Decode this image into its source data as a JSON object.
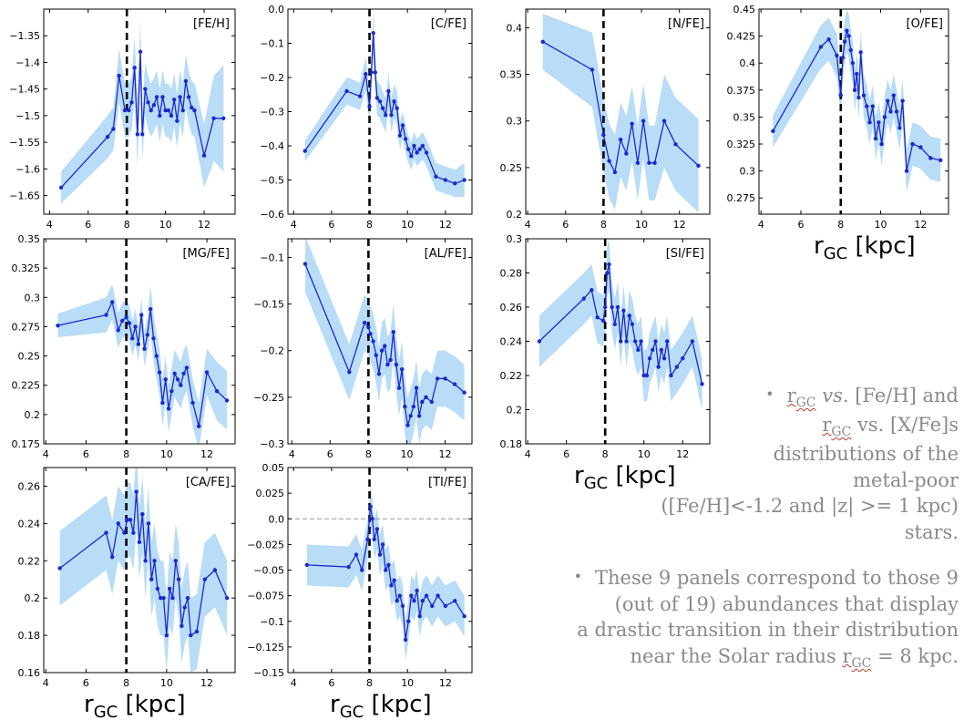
{
  "colors": {
    "band": "#b9dcf7",
    "line": "#1a29cf",
    "solar": "#000000",
    "zero": "#999999"
  },
  "x_axis_label": {
    "main": "r",
    "sub": "GC",
    "unit": " [kpc]"
  },
  "solar_radius_kpc": 8,
  "chart_data": [
    {
      "type": "line",
      "label": "[FE/H]",
      "xlim": [
        3.7,
        13.6
      ],
      "ylim": [
        -1.685,
        -1.3
      ],
      "xticks": [
        4,
        6,
        8,
        10,
        12
      ],
      "yticks": [
        -1.35,
        -1.4,
        -1.45,
        -1.5,
        -1.55,
        -1.6,
        -1.65
      ],
      "x": [
        4.6,
        7.0,
        7.3,
        7.6,
        7.9,
        8.1,
        8.25,
        8.4,
        8.55,
        8.7,
        8.8,
        8.95,
        9.1,
        9.25,
        9.4,
        9.55,
        9.7,
        9.85,
        10.0,
        10.15,
        10.3,
        10.45,
        10.6,
        10.75,
        10.9,
        11.05,
        11.2,
        11.35,
        11.5,
        12.0,
        12.5,
        13.0
      ],
      "y": [
        -1.635,
        -1.54,
        -1.525,
        -1.425,
        -1.49,
        -1.49,
        -1.475,
        -1.41,
        -1.535,
        -1.38,
        -1.535,
        -1.45,
        -1.475,
        -1.49,
        -1.48,
        -1.465,
        -1.5,
        -1.465,
        -1.49,
        -1.49,
        -1.5,
        -1.47,
        -1.51,
        -1.465,
        -1.49,
        -1.435,
        -1.465,
        -1.485,
        -1.49,
        -1.575,
        -1.505,
        -1.505
      ],
      "err": [
        0.03,
        0.04,
        0.04,
        0.05,
        0.05,
        0.05,
        0.05,
        0.06,
        0.06,
        0.06,
        0.05,
        0.05,
        0.05,
        0.05,
        0.05,
        0.05,
        0.05,
        0.05,
        0.05,
        0.05,
        0.05,
        0.05,
        0.05,
        0.05,
        0.05,
        0.05,
        0.05,
        0.05,
        0.05,
        0.06,
        0.08,
        0.1
      ]
    },
    {
      "type": "line",
      "label": "[C/FE]",
      "xlim": [
        3.7,
        13.4
      ],
      "ylim": [
        -0.6,
        0.0
      ],
      "xticks": [
        4,
        6,
        8,
        10,
        12
      ],
      "yticks": [
        0.0,
        -0.1,
        -0.2,
        -0.3,
        -0.4,
        -0.5,
        -0.6
      ],
      "x": [
        4.6,
        6.8,
        7.5,
        7.8,
        8.0,
        8.1,
        8.2,
        8.3,
        8.4,
        8.55,
        8.7,
        8.85,
        9.0,
        9.15,
        9.3,
        9.45,
        9.6,
        9.75,
        9.9,
        10.05,
        10.2,
        10.35,
        10.5,
        10.65,
        10.8,
        11.0,
        11.5,
        12.0,
        12.5,
        13.0
      ],
      "y": [
        -0.415,
        -0.24,
        -0.255,
        -0.19,
        -0.285,
        -0.185,
        -0.07,
        -0.185,
        -0.26,
        -0.27,
        -0.29,
        -0.31,
        -0.24,
        -0.31,
        -0.27,
        -0.29,
        -0.37,
        -0.34,
        -0.38,
        -0.41,
        -0.43,
        -0.4,
        -0.42,
        -0.41,
        -0.4,
        -0.42,
        -0.49,
        -0.5,
        -0.51,
        -0.5
      ],
      "err": [
        0.03,
        0.04,
        0.04,
        0.05,
        0.05,
        0.06,
        0.06,
        0.06,
        0.05,
        0.05,
        0.05,
        0.05,
        0.05,
        0.05,
        0.05,
        0.05,
        0.04,
        0.04,
        0.04,
        0.04,
        0.04,
        0.04,
        0.04,
        0.04,
        0.04,
        0.04,
        0.04,
        0.04,
        0.04,
        0.05
      ]
    },
    {
      "type": "line",
      "label": "[N/FE]",
      "xlim": [
        3.9,
        13.6
      ],
      "ylim": [
        0.2,
        0.42
      ],
      "xticks": [
        4,
        6,
        8,
        10,
        12
      ],
      "yticks": [
        0.4,
        0.35,
        0.3,
        0.25,
        0.2
      ],
      "x": [
        4.8,
        7.4,
        8.0,
        8.3,
        8.6,
        8.9,
        9.2,
        9.5,
        9.8,
        10.1,
        10.4,
        10.7,
        11.2,
        11.8,
        13.0
      ],
      "y": [
        0.385,
        0.355,
        0.285,
        0.257,
        0.245,
        0.28,
        0.265,
        0.297,
        0.255,
        0.3,
        0.255,
        0.255,
        0.3,
        0.275,
        0.252
      ],
      "err": [
        0.03,
        0.04,
        0.04,
        0.04,
        0.04,
        0.04,
        0.04,
        0.04,
        0.04,
        0.04,
        0.04,
        0.04,
        0.05,
        0.05,
        0.05
      ]
    },
    {
      "type": "line",
      "label": "[O/FE]",
      "xlim": [
        3.9,
        13.4
      ],
      "ylim": [
        0.26,
        0.45
      ],
      "xticks": [
        4,
        6,
        8,
        10,
        12
      ],
      "yticks": [
        0.45,
        0.425,
        0.4,
        0.375,
        0.35,
        0.325,
        0.3,
        0.275
      ],
      "x": [
        4.6,
        7.0,
        7.4,
        7.8,
        8.0,
        8.1,
        8.2,
        8.3,
        8.4,
        8.5,
        8.6,
        8.7,
        8.8,
        8.9,
        9.0,
        9.15,
        9.3,
        9.45,
        9.6,
        9.75,
        9.9,
        10.05,
        10.2,
        10.35,
        10.5,
        10.65,
        10.8,
        10.95,
        11.1,
        11.3,
        11.6,
        12.0,
        12.5,
        13.0
      ],
      "y": [
        0.337,
        0.415,
        0.422,
        0.407,
        0.37,
        0.405,
        0.42,
        0.43,
        0.425,
        0.412,
        0.4,
        0.375,
        0.39,
        0.368,
        0.41,
        0.37,
        0.36,
        0.345,
        0.36,
        0.33,
        0.345,
        0.325,
        0.35,
        0.365,
        0.355,
        0.37,
        0.355,
        0.34,
        0.365,
        0.3,
        0.325,
        0.322,
        0.312,
        0.31
      ],
      "err": [
        0.015,
        0.02,
        0.02,
        0.02,
        0.02,
        0.02,
        0.02,
        0.02,
        0.02,
        0.02,
        0.02,
        0.02,
        0.02,
        0.02,
        0.02,
        0.02,
        0.02,
        0.02,
        0.02,
        0.02,
        0.02,
        0.02,
        0.02,
        0.02,
        0.02,
        0.02,
        0.02,
        0.02,
        0.02,
        0.02,
        0.02,
        0.02,
        0.02,
        0.02
      ]
    },
    {
      "type": "line",
      "label": "[MG/FE]",
      "xlim": [
        3.9,
        13.4
      ],
      "ylim": [
        0.175,
        0.35
      ],
      "xticks": [
        4,
        6,
        8,
        10,
        12
      ],
      "yticks": [
        0.35,
        0.325,
        0.3,
        0.275,
        0.25,
        0.225,
        0.2,
        0.175
      ],
      "x": [
        4.6,
        7.0,
        7.3,
        7.6,
        7.8,
        8.0,
        8.15,
        8.3,
        8.45,
        8.6,
        8.75,
        8.9,
        9.05,
        9.2,
        9.35,
        9.5,
        9.65,
        9.8,
        9.95,
        10.1,
        10.25,
        10.4,
        10.55,
        10.7,
        10.85,
        11.0,
        11.3,
        11.6,
        12.0,
        12.5,
        13.0
      ],
      "y": [
        0.276,
        0.285,
        0.296,
        0.272,
        0.28,
        0.283,
        0.278,
        0.265,
        0.275,
        0.26,
        0.285,
        0.256,
        0.268,
        0.29,
        0.265,
        0.25,
        0.236,
        0.21,
        0.23,
        0.205,
        0.22,
        0.235,
        0.23,
        0.225,
        0.235,
        0.24,
        0.21,
        0.19,
        0.236,
        0.22,
        0.212
      ],
      "err": [
        0.01,
        0.015,
        0.015,
        0.015,
        0.015,
        0.015,
        0.015,
        0.015,
        0.015,
        0.015,
        0.015,
        0.015,
        0.015,
        0.02,
        0.02,
        0.02,
        0.02,
        0.02,
        0.02,
        0.02,
        0.02,
        0.02,
        0.02,
        0.02,
        0.02,
        0.02,
        0.02,
        0.02,
        0.02,
        0.025,
        0.025
      ]
    },
    {
      "type": "line",
      "label": "[AL/FE]",
      "xlim": [
        3.8,
        13.4
      ],
      "ylim": [
        -0.3,
        -0.08
      ],
      "xticks": [
        4,
        6,
        8,
        10,
        12
      ],
      "yticks": [
        -0.1,
        -0.15,
        -0.2,
        -0.25,
        -0.3
      ],
      "x": [
        4.7,
        7.0,
        7.8,
        8.0,
        8.1,
        8.25,
        8.4,
        8.55,
        8.7,
        8.85,
        9.0,
        9.15,
        9.3,
        9.45,
        9.6,
        9.75,
        9.9,
        10.05,
        10.2,
        10.35,
        10.5,
        10.65,
        10.8,
        11.0,
        11.3,
        11.6,
        12.0,
        12.5,
        13.0
      ],
      "y": [
        -0.107,
        -0.223,
        -0.17,
        -0.175,
        -0.182,
        -0.19,
        -0.205,
        -0.225,
        -0.2,
        -0.195,
        -0.215,
        -0.21,
        -0.18,
        -0.215,
        -0.24,
        -0.22,
        -0.26,
        -0.28,
        -0.27,
        -0.26,
        -0.24,
        -0.27,
        -0.255,
        -0.25,
        -0.255,
        -0.23,
        -0.23,
        -0.236,
        -0.245
      ],
      "err": [
        0.03,
        0.03,
        0.03,
        0.03,
        0.03,
        0.03,
        0.03,
        0.03,
        0.03,
        0.03,
        0.03,
        0.03,
        0.03,
        0.03,
        0.03,
        0.03,
        0.03,
        0.03,
        0.03,
        0.03,
        0.03,
        0.03,
        0.03,
        0.03,
        0.03,
        0.03,
        0.03,
        0.03,
        0.03
      ]
    },
    {
      "type": "line",
      "label": "[SI/FE]",
      "xlim": [
        3.9,
        13.4
      ],
      "ylim": [
        0.18,
        0.3
      ],
      "xticks": [
        4,
        6,
        8,
        10,
        12
      ],
      "yticks": [
        0.3,
        0.28,
        0.26,
        0.24,
        0.22,
        0.2,
        0.18
      ],
      "x": [
        4.6,
        6.9,
        7.3,
        7.6,
        7.9,
        8.0,
        8.1,
        8.2,
        8.35,
        8.5,
        8.65,
        8.8,
        8.95,
        9.1,
        9.25,
        9.4,
        9.55,
        9.7,
        9.85,
        10.0,
        10.15,
        10.3,
        10.45,
        10.6,
        10.75,
        10.9,
        11.05,
        11.2,
        11.4,
        11.7,
        12.0,
        12.5,
        13.0
      ],
      "y": [
        0.24,
        0.265,
        0.27,
        0.254,
        0.252,
        0.26,
        0.28,
        0.285,
        0.26,
        0.25,
        0.26,
        0.24,
        0.258,
        0.24,
        0.255,
        0.25,
        0.24,
        0.235,
        0.24,
        0.22,
        0.22,
        0.23,
        0.235,
        0.24,
        0.225,
        0.235,
        0.23,
        0.24,
        0.22,
        0.225,
        0.23,
        0.24,
        0.215
      ],
      "err": [
        0.015,
        0.015,
        0.015,
        0.015,
        0.015,
        0.015,
        0.015,
        0.015,
        0.015,
        0.015,
        0.015,
        0.015,
        0.015,
        0.015,
        0.015,
        0.015,
        0.015,
        0.015,
        0.015,
        0.015,
        0.015,
        0.015,
        0.015,
        0.015,
        0.015,
        0.015,
        0.015,
        0.015,
        0.015,
        0.015,
        0.015,
        0.015,
        0.015
      ]
    },
    {
      "type": "line",
      "label": "[CA/FE]",
      "xlim": [
        3.9,
        13.4
      ],
      "ylim": [
        0.16,
        0.27
      ],
      "xticks": [
        4,
        6,
        8,
        10,
        12
      ],
      "yticks": [
        0.26,
        0.24,
        0.22,
        0.2,
        0.18,
        0.16
      ],
      "x": [
        4.7,
        7.0,
        7.3,
        7.6,
        7.9,
        8.05,
        8.2,
        8.35,
        8.5,
        8.65,
        8.8,
        8.95,
        9.1,
        9.25,
        9.4,
        9.55,
        9.7,
        9.85,
        10.0,
        10.15,
        10.3,
        10.45,
        10.6,
        10.75,
        10.9,
        11.05,
        11.2,
        11.5,
        11.9,
        12.4,
        13.0
      ],
      "y": [
        0.216,
        0.235,
        0.222,
        0.24,
        0.235,
        0.242,
        0.242,
        0.235,
        0.257,
        0.23,
        0.245,
        0.22,
        0.24,
        0.21,
        0.22,
        0.205,
        0.2,
        0.2,
        0.18,
        0.205,
        0.2,
        0.22,
        0.21,
        0.185,
        0.195,
        0.2,
        0.18,
        0.182,
        0.21,
        0.215,
        0.2
      ],
      "err": [
        0.02,
        0.02,
        0.02,
        0.02,
        0.02,
        0.02,
        0.02,
        0.02,
        0.02,
        0.02,
        0.02,
        0.02,
        0.02,
        0.02,
        0.02,
        0.02,
        0.02,
        0.02,
        0.02,
        0.02,
        0.02,
        0.02,
        0.02,
        0.02,
        0.02,
        0.02,
        0.02,
        0.02,
        0.02,
        0.02,
        0.02
      ]
    },
    {
      "type": "line",
      "label": "[TI/FE]",
      "xlim": [
        3.7,
        13.4
      ],
      "ylim": [
        -0.15,
        0.05
      ],
      "xticks": [
        4,
        6,
        8,
        10,
        12
      ],
      "yticks": [
        0.05,
        0.025,
        0.0,
        -0.025,
        -0.05,
        -0.075,
        -0.1,
        -0.125,
        -0.15
      ],
      "zero_line": 0,
      "x": [
        4.7,
        6.9,
        7.3,
        7.6,
        7.9,
        8.05,
        8.15,
        8.25,
        8.4,
        8.55,
        8.7,
        8.85,
        9.0,
        9.15,
        9.3,
        9.45,
        9.6,
        9.75,
        9.9,
        10.05,
        10.2,
        10.35,
        10.5,
        10.65,
        10.8,
        11.0,
        11.3,
        11.6,
        12.0,
        12.5,
        13.0
      ],
      "y": [
        -0.045,
        -0.047,
        -0.035,
        -0.05,
        -0.02,
        0.012,
        0.0,
        -0.02,
        -0.01,
        -0.035,
        -0.025,
        -0.05,
        -0.045,
        -0.065,
        -0.06,
        -0.08,
        -0.075,
        -0.085,
        -0.118,
        -0.1,
        -0.075,
        -0.08,
        -0.07,
        -0.095,
        -0.08,
        -0.075,
        -0.085,
        -0.075,
        -0.085,
        -0.08,
        -0.095
      ],
      "err": [
        0.02,
        0.02,
        0.02,
        0.02,
        0.02,
        0.02,
        0.02,
        0.02,
        0.02,
        0.02,
        0.02,
        0.02,
        0.02,
        0.02,
        0.02,
        0.02,
        0.02,
        0.02,
        0.02,
        0.02,
        0.02,
        0.02,
        0.02,
        0.02,
        0.02,
        0.02,
        0.02,
        0.02,
        0.02,
        0.02,
        0.02
      ]
    }
  ],
  "notes": {
    "b1": {
      "r": "r",
      "sub": "GC",
      "vs": " vs.",
      "t1": " [Fe/H] and",
      "t2": " vs. [X/Fe]s",
      "t3": "distributions of the",
      "t4": "metal-poor",
      "t5": "([Fe/H]<-1.2 and |z| >= 1 kpc)",
      "t6": "stars."
    },
    "b2": {
      "t1": "These 9 panels correspond to those 9",
      "t2": "(out of 19) abundances that display",
      "t3": "a drastic transition in their distribution",
      "t4": "near the Solar radius ",
      "r": "r",
      "sub": "GC",
      "t5": " = 8 kpc."
    }
  }
}
